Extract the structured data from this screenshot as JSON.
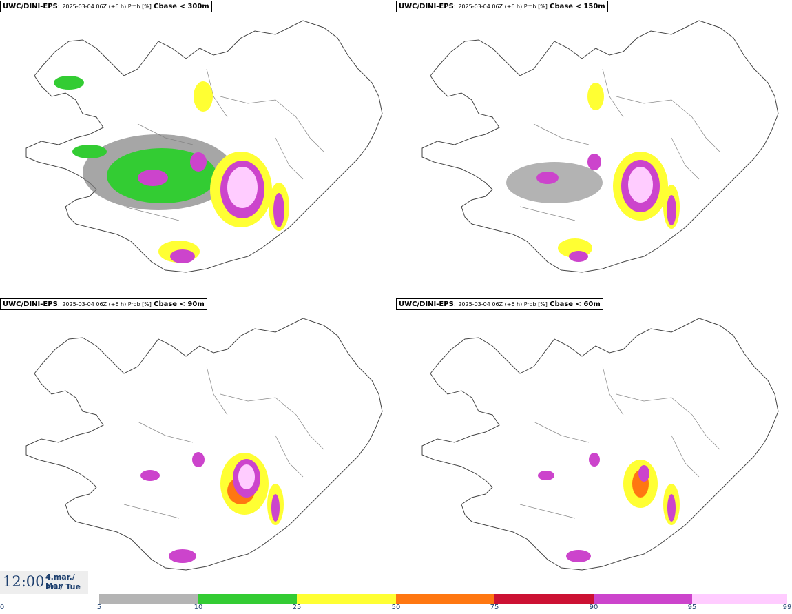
{
  "panels": [
    {
      "model": "UWC/DINI-EPS",
      "meta": "2025-03-04 06Z (+6 h) Prob [%]",
      "condition": "Cbase < 300m"
    },
    {
      "model": "UWC/DINI-EPS",
      "meta": "2025-03-04 06Z (+6 h) Prob [%]",
      "condition": "Cbase < 150m"
    },
    {
      "model": "UWC/DINI-EPS",
      "meta": "2025-03-04 06Z (+6 h) Prob [%]",
      "condition": "Cbase < 90m"
    },
    {
      "model": "UWC/DINI-EPS",
      "meta": "2025-03-04 06Z (+6 h) Prob [%]",
      "condition": "Cbase < 60m"
    }
  ],
  "valid_time": {
    "time": "12:00",
    "date": "4.mar./ Mar",
    "day": "Þri./ Tue"
  },
  "legend": {
    "ticks": [
      "0",
      "5",
      "10",
      "25",
      "50",
      "75",
      "90",
      "95",
      "99"
    ],
    "colors": [
      "#b4b4b4",
      "#808080",
      "#33cc33",
      "#ffff33",
      "#ff7711",
      "#cc1133",
      "#cc44cc",
      "#ffccff"
    ]
  }
}
